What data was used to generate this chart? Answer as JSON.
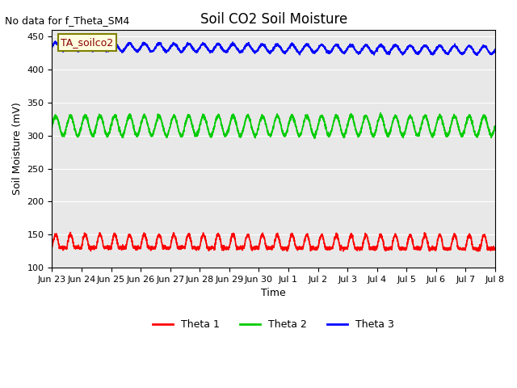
{
  "title": "Soil CO2 Soil Moisture",
  "no_data_text": "No data for f_Theta_SM4",
  "ylabel": "Soil Moisture (mV)",
  "xlabel": "Time",
  "annotation_box": "TA_soilco2",
  "ylim": [
    100,
    460
  ],
  "yticks": [
    100,
    150,
    200,
    250,
    300,
    350,
    400,
    450
  ],
  "bg_color": "#e8e8e8",
  "legend_labels": [
    "Theta 1",
    "Theta 2",
    "Theta 3"
  ],
  "legend_colors": [
    "#ff0000",
    "#00cc00",
    "#0000ff"
  ],
  "line_colors": [
    "#ff0000",
    "#00cc00",
    "#0000ff"
  ],
  "xtick_labels": [
    "Jun 23",
    "Jun 24",
    "Jun 25",
    "Jun 26",
    "Jun 27",
    "Jun 28",
    "Jun 29",
    "Jun 30",
    "Jul 1",
    "Jul 2",
    "Jul 3",
    "Jul 4",
    "Jul 5",
    "Jul 6",
    "Jul 7",
    "Jul 8"
  ],
  "theta1_base": 130,
  "theta1_amp": 20,
  "theta2_base": 315,
  "theta2_amp": 15,
  "theta3_base": 435,
  "theta3_amp": 6,
  "num_days": 15,
  "cycles_per_day": 2
}
